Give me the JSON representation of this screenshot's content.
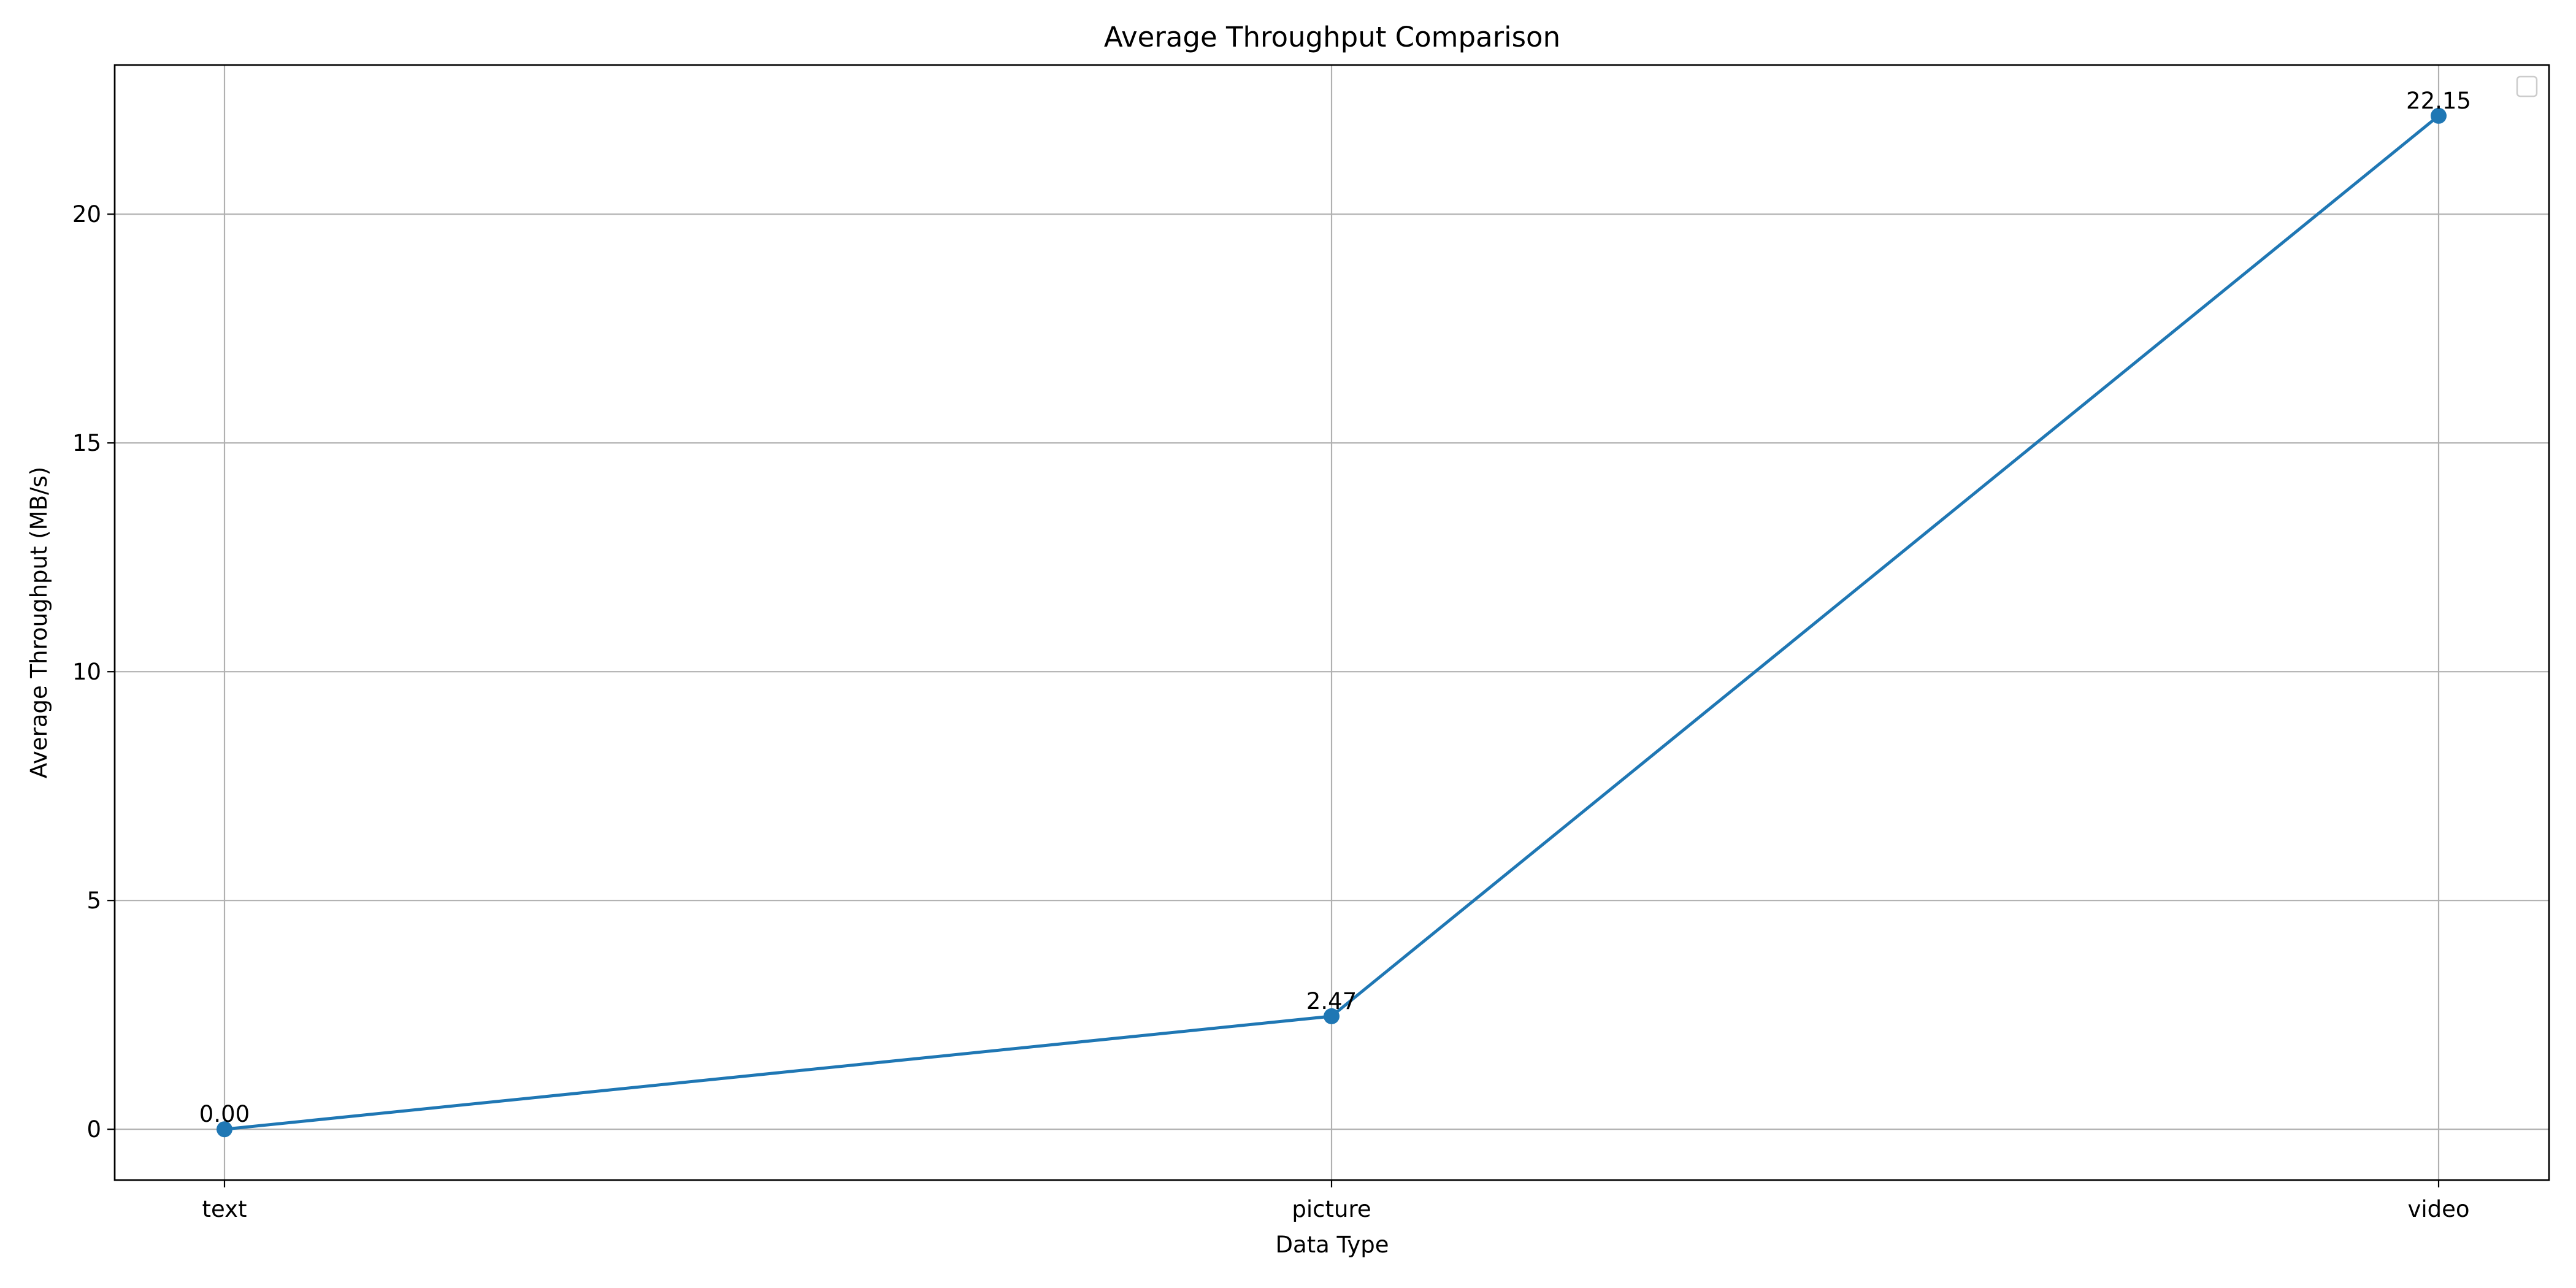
{
  "chart_data": {
    "type": "line",
    "title": "Average Throughput Comparison",
    "xlabel": "Data Type",
    "ylabel": "Average Throughput (MB/s)",
    "categories": [
      "text",
      "picture",
      "video"
    ],
    "series": [
      {
        "values": [
          0.0,
          2.47,
          22.15
        ],
        "data_labels": [
          "0.00",
          "2.47",
          "22.15"
        ],
        "color": "#1f77b4",
        "marker": "circle"
      }
    ],
    "ylim": [
      -1.11,
      23.26
    ],
    "yticks": [
      0,
      5,
      10,
      15,
      20
    ],
    "ytick_labels": [
      "0",
      "5",
      "10",
      "15",
      "20"
    ],
    "grid": true,
    "legend": {
      "placement": "top-right",
      "entries": []
    }
  }
}
